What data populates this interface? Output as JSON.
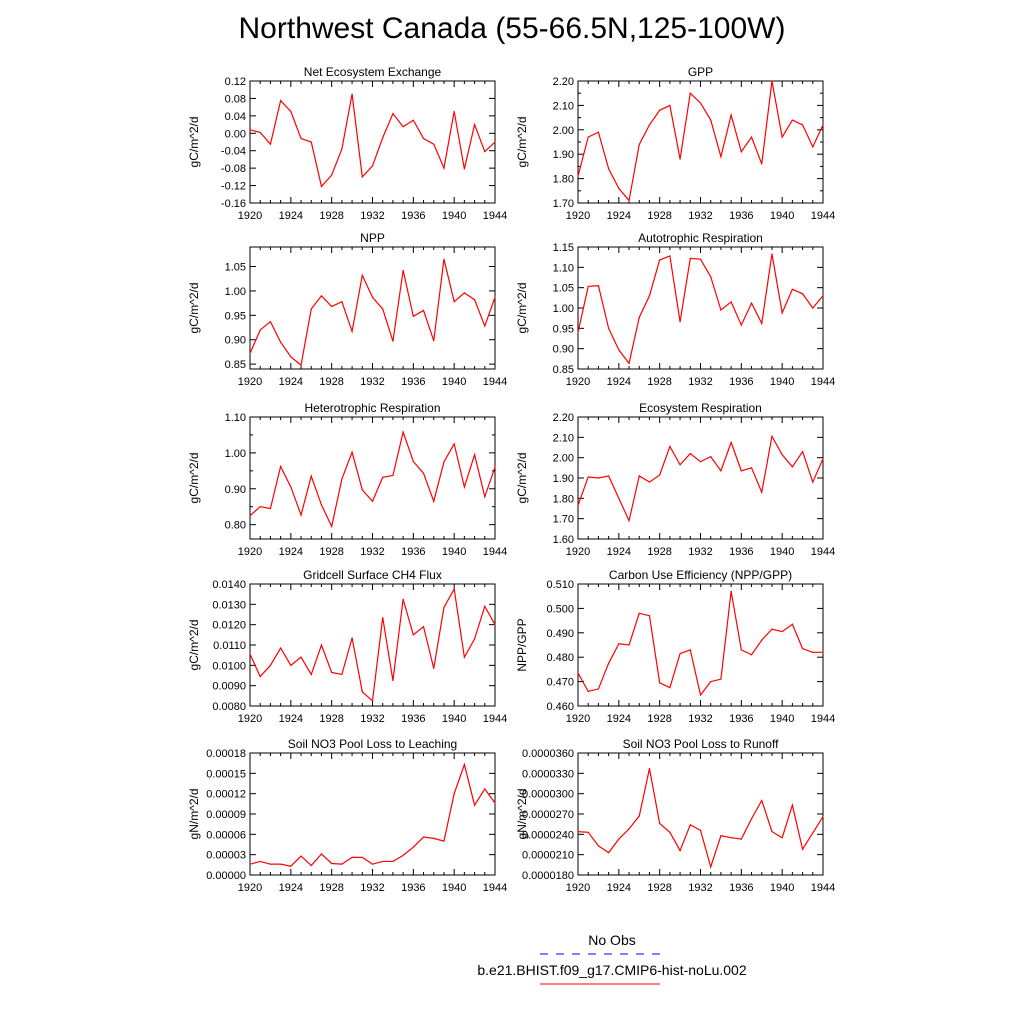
{
  "title": "Northwest Canada (55-66.5N,125-100W)",
  "colors": {
    "model_line": "#ff0000",
    "obs_line": "#0000ff",
    "frame": "#000000"
  },
  "x_ticks": [
    "1920",
    "1924",
    "1928",
    "1932",
    "1936",
    "1940",
    "1944"
  ],
  "legend": [
    {
      "label": "No Obs",
      "color": "#0000ff",
      "style": "dashed"
    },
    {
      "label": "b.e21.BHIST.f09_g17.CMIP6-hist-noLu.002",
      "color": "#ff0000",
      "style": "solid"
    }
  ],
  "chart_data": [
    {
      "type": "line",
      "title": "Net Ecosystem Exchange",
      "ylabel": "gC/m^2/d",
      "xlim": [
        1920,
        1944
      ],
      "ylim": [
        -0.16,
        0.12
      ],
      "yticks": [
        "0.12",
        "0.08",
        "0.04",
        "0.00",
        "-0.04",
        "-0.08",
        "-0.12",
        "-0.16"
      ],
      "ytick_values": [
        0.12,
        0.08,
        0.04,
        0.0,
        -0.04,
        -0.08,
        -0.12,
        -0.16
      ],
      "x": [
        1920,
        1921,
        1922,
        1923,
        1924,
        1925,
        1926,
        1927,
        1928,
        1929,
        1930,
        1931,
        1932,
        1933,
        1934,
        1935,
        1936,
        1937,
        1938,
        1939,
        1940,
        1941,
        1942,
        1943,
        1944
      ],
      "values": [
        0.008,
        0.002,
        -0.025,
        0.075,
        0.05,
        -0.012,
        -0.02,
        -0.122,
        -0.096,
        -0.036,
        0.09,
        -0.1,
        -0.075,
        -0.01,
        0.045,
        0.015,
        0.03,
        -0.012,
        -0.025,
        -0.08,
        0.05,
        -0.082,
        0.02,
        -0.042,
        -0.02
      ]
    },
    {
      "type": "line",
      "title": "GPP",
      "ylabel": "gC/m^2/d",
      "xlim": [
        1920,
        1944
      ],
      "ylim": [
        1.7,
        2.2
      ],
      "yticks": [
        "2.20",
        "2.10",
        "2.00",
        "1.90",
        "1.80",
        "1.70"
      ],
      "ytick_values": [
        2.2,
        2.1,
        2.0,
        1.9,
        1.8,
        1.7
      ],
      "minor_ticks": [
        2.15,
        2.05,
        1.95,
        1.85,
        1.75
      ],
      "x": [
        1920,
        1921,
        1922,
        1923,
        1924,
        1925,
        1926,
        1927,
        1928,
        1929,
        1930,
        1931,
        1932,
        1933,
        1934,
        1935,
        1936,
        1937,
        1938,
        1939,
        1940,
        1941,
        1942,
        1943,
        1944
      ],
      "values": [
        1.81,
        1.97,
        1.99,
        1.84,
        1.76,
        1.71,
        1.94,
        2.02,
        2.08,
        2.1,
        1.88,
        2.15,
        2.11,
        2.04,
        1.89,
        2.06,
        1.91,
        1.97,
        1.86,
        2.2,
        1.97,
        2.04,
        2.02,
        1.93,
        2.02
      ]
    },
    {
      "type": "line",
      "title": "NPP",
      "ylabel": "gC/m^2/d",
      "xlim": [
        1920,
        1944
      ],
      "ylim": [
        0.84,
        1.09
      ],
      "yticks": [
        "1.05",
        "1.00",
        "0.95",
        "0.90",
        "0.85"
      ],
      "ytick_values": [
        1.05,
        1.0,
        0.95,
        0.9,
        0.85
      ],
      "x": [
        1920,
        1921,
        1922,
        1923,
        1924,
        1925,
        1926,
        1927,
        1928,
        1929,
        1930,
        1931,
        1932,
        1933,
        1934,
        1935,
        1936,
        1937,
        1938,
        1939,
        1940,
        1941,
        1942,
        1943,
        1944
      ],
      "values": [
        0.872,
        0.92,
        0.937,
        0.895,
        0.865,
        0.848,
        0.963,
        0.99,
        0.968,
        0.978,
        0.917,
        1.032,
        0.987,
        0.963,
        0.897,
        1.042,
        0.948,
        0.96,
        0.898,
        1.065,
        0.978,
        0.996,
        0.982,
        0.928,
        0.987
      ]
    },
    {
      "type": "line",
      "title": "Autotrophic Respiration",
      "ylabel": "gC/m^2/d",
      "xlim": [
        1920,
        1944
      ],
      "ylim": [
        0.85,
        1.15
      ],
      "yticks": [
        "1.15",
        "1.10",
        "1.05",
        "1.00",
        "0.95",
        "0.90",
        "0.85"
      ],
      "ytick_values": [
        1.15,
        1.1,
        1.05,
        1.0,
        0.95,
        0.9,
        0.85
      ],
      "x": [
        1920,
        1921,
        1922,
        1923,
        1924,
        1925,
        1926,
        1927,
        1928,
        1929,
        1930,
        1931,
        1932,
        1933,
        1934,
        1935,
        1936,
        1937,
        1938,
        1939,
        1940,
        1941,
        1942,
        1943,
        1944
      ],
      "values": [
        0.94,
        1.053,
        1.055,
        0.95,
        0.897,
        0.864,
        0.977,
        1.03,
        1.118,
        1.128,
        0.966,
        1.122,
        1.12,
        1.077,
        0.995,
        1.015,
        0.958,
        1.012,
        0.962,
        1.133,
        0.988,
        1.046,
        1.035,
        1.0,
        1.03
      ]
    },
    {
      "type": "line",
      "title": "Heterotrophic Respiration",
      "ylabel": "gC/m^2/d",
      "xlim": [
        1920,
        1944
      ],
      "ylim": [
        0.76,
        1.1
      ],
      "yticks": [
        "1.10",
        "1.00",
        "0.90",
        "0.80"
      ],
      "ytick_values": [
        1.1,
        1.0,
        0.9,
        0.8
      ],
      "minor_ticks": [
        1.05,
        0.95,
        0.85
      ],
      "x": [
        1920,
        1921,
        1922,
        1923,
        1924,
        1925,
        1926,
        1927,
        1928,
        1929,
        1930,
        1931,
        1932,
        1933,
        1934,
        1935,
        1936,
        1937,
        1938,
        1939,
        1940,
        1941,
        1942,
        1943,
        1944
      ],
      "values": [
        0.825,
        0.85,
        0.845,
        0.962,
        0.905,
        0.827,
        0.935,
        0.855,
        0.795,
        0.927,
        1.002,
        0.897,
        0.865,
        0.932,
        0.937,
        1.058,
        0.976,
        0.943,
        0.865,
        0.975,
        1.025,
        0.905,
        0.995,
        0.878,
        0.96
      ]
    },
    {
      "type": "line",
      "title": "Ecosystem Respiration",
      "ylabel": "gC/m^2/d",
      "xlim": [
        1920,
        1944
      ],
      "ylim": [
        1.6,
        2.2
      ],
      "yticks": [
        "2.20",
        "2.10",
        "2.00",
        "1.90",
        "1.80",
        "1.70",
        "1.60"
      ],
      "ytick_values": [
        2.2,
        2.1,
        2.0,
        1.9,
        1.8,
        1.7,
        1.6
      ],
      "x": [
        1920,
        1921,
        1922,
        1923,
        1924,
        1925,
        1926,
        1927,
        1928,
        1929,
        1930,
        1931,
        1932,
        1933,
        1934,
        1935,
        1936,
        1937,
        1938,
        1939,
        1940,
        1941,
        1942,
        1943,
        1944
      ],
      "values": [
        1.765,
        1.905,
        1.9,
        1.91,
        1.8,
        1.69,
        1.91,
        1.88,
        1.915,
        2.055,
        1.965,
        2.02,
        1.98,
        2.005,
        1.935,
        2.075,
        1.935,
        1.95,
        1.83,
        2.105,
        2.015,
        1.955,
        2.03,
        1.88,
        1.995
      ]
    },
    {
      "type": "line",
      "title": "Gridcell Surface CH4 Flux",
      "ylabel": "gC/m^2/d",
      "xlim": [
        1920,
        1944
      ],
      "ylim": [
        0.008,
        0.014
      ],
      "yticks": [
        "0.0140",
        "0.0130",
        "0.0120",
        "0.0110",
        "0.0100",
        "0.0090",
        "0.0080"
      ],
      "ytick_values": [
        0.014,
        0.013,
        0.012,
        0.011,
        0.01,
        0.009,
        0.008
      ],
      "x": [
        1920,
        1921,
        1922,
        1923,
        1924,
        1925,
        1926,
        1927,
        1928,
        1929,
        1930,
        1931,
        1932,
        1933,
        1934,
        1935,
        1936,
        1937,
        1938,
        1939,
        1940,
        1941,
        1942,
        1943,
        1944
      ],
      "values": [
        0.01055,
        0.00945,
        0.01,
        0.01085,
        0.01,
        0.0104,
        0.00955,
        0.011,
        0.00965,
        0.00955,
        0.01135,
        0.0087,
        0.00825,
        0.01235,
        0.00925,
        0.01325,
        0.0115,
        0.0119,
        0.00985,
        0.01285,
        0.01375,
        0.0104,
        0.0113,
        0.0129,
        0.012
      ]
    },
    {
      "type": "line",
      "title": "Carbon Use Efficiency (NPP/GPP)",
      "ylabel": "NPP/GPP",
      "xlim": [
        1920,
        1944
      ],
      "ylim": [
        0.46,
        0.51
      ],
      "yticks": [
        "0.510",
        "0.500",
        "0.490",
        "0.480",
        "0.470",
        "0.460"
      ],
      "ytick_values": [
        0.51,
        0.5,
        0.49,
        0.48,
        0.47,
        0.46
      ],
      "x": [
        1920,
        1921,
        1922,
        1923,
        1924,
        1925,
        1926,
        1927,
        1928,
        1929,
        1930,
        1931,
        1932,
        1933,
        1934,
        1935,
        1936,
        1937,
        1938,
        1939,
        1940,
        1941,
        1942,
        1943,
        1944
      ],
      "values": [
        0.4735,
        0.466,
        0.467,
        0.4775,
        0.4855,
        0.485,
        0.498,
        0.497,
        0.4695,
        0.4675,
        0.4815,
        0.483,
        0.4645,
        0.47,
        0.471,
        0.507,
        0.483,
        0.481,
        0.487,
        0.4915,
        0.4905,
        0.4935,
        0.4835,
        0.482,
        0.482
      ]
    },
    {
      "type": "line",
      "title": "Soil NO3 Pool Loss to Leaching",
      "ylabel": "gN/m^2/d",
      "xlim": [
        1920,
        1944
      ],
      "ylim": [
        0.0,
        0.00018
      ],
      "yticks": [
        "0.00018",
        "0.00015",
        "0.00012",
        "0.00009",
        "0.00006",
        "0.00003",
        "0.00000"
      ],
      "ytick_values": [
        0.00018,
        0.00015,
        0.00012,
        9e-05,
        6e-05,
        3e-05,
        0.0
      ],
      "x": [
        1920,
        1921,
        1922,
        1923,
        1924,
        1925,
        1926,
        1927,
        1928,
        1929,
        1930,
        1931,
        1932,
        1933,
        1934,
        1935,
        1936,
        1937,
        1938,
        1939,
        1940,
        1941,
        1942,
        1943,
        1944
      ],
      "values": [
        1.6e-05,
        2e-05,
        1.6e-05,
        1.6e-05,
        1.3e-05,
        2.8e-05,
        1.4e-05,
        3.1e-05,
        1.7e-05,
        1.6e-05,
        2.6e-05,
        2.6e-05,
        1.6e-05,
        2e-05,
        2e-05,
        2.9e-05,
        4.1e-05,
        5.6e-05,
        5.4e-05,
        5e-05,
        0.00012,
        0.000163,
        0.000103,
        0.000127,
        0.000106
      ]
    },
    {
      "type": "line",
      "title": "Soil NO3 Pool Loss to Runoff",
      "ylabel": "gN/m^2/d",
      "xlim": [
        1920,
        1944
      ],
      "ylim": [
        1.8e-05,
        3.6e-05
      ],
      "yticks": [
        "0.0000360",
        "0.0000330",
        "0.0000300",
        "0.0000270",
        "0.0000240",
        "0.0000210",
        "0.0000180"
      ],
      "ytick_values": [
        3.6e-05,
        3.3e-05,
        3e-05,
        2.7e-05,
        2.4e-05,
        2.1e-05,
        1.8e-05
      ],
      "x": [
        1920,
        1921,
        1922,
        1923,
        1924,
        1925,
        1926,
        1927,
        1928,
        1929,
        1930,
        1931,
        1932,
        1933,
        1934,
        1935,
        1936,
        1937,
        1938,
        1939,
        1940,
        1941,
        1942,
        1943,
        1944
      ],
      "values": [
        2.44e-05,
        2.43e-05,
        2.23e-05,
        2.13e-05,
        2.33e-05,
        2.48e-05,
        2.67e-05,
        3.37e-05,
        2.56e-05,
        2.43e-05,
        2.16e-05,
        2.54e-05,
        2.46e-05,
        1.92e-05,
        2.38e-05,
        2.35e-05,
        2.33e-05,
        2.63e-05,
        2.9e-05,
        2.44e-05,
        2.35e-05,
        2.83e-05,
        2.18e-05,
        2.42e-05,
        2.66e-05
      ]
    }
  ]
}
